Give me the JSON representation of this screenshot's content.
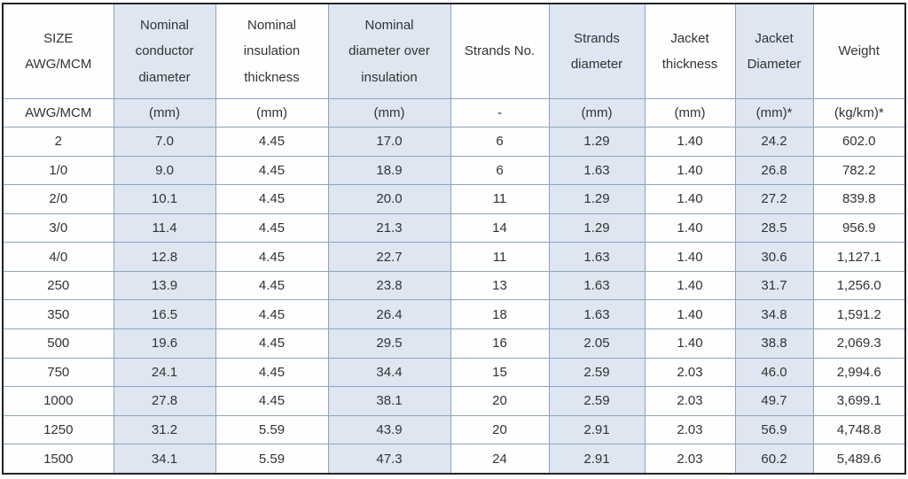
{
  "table": {
    "name": "cable-specification-table",
    "colors": {
      "outer_border": "#222426",
      "grid_line": "#8fa2c4",
      "shaded_column_fill": "#dde6f1",
      "text": "#333333"
    },
    "columns": [
      {
        "id": "size",
        "header": "SIZE\nAWG/MCM",
        "unit": "AWG/MCM",
        "shaded": false
      },
      {
        "id": "nominal-conductor-diameter",
        "header": "Nominal\nconductor\ndiameter",
        "unit": "(mm)",
        "shaded": true
      },
      {
        "id": "nominal-insulation-thickness",
        "header": "Nominal\ninsulation\nthickness",
        "unit": "(mm)",
        "shaded": false
      },
      {
        "id": "nominal-diameter-over-insulation",
        "header": "Nominal\ndiameter over\ninsulation",
        "unit": "(mm)",
        "shaded": true
      },
      {
        "id": "strands-no",
        "header": "Strands No.",
        "unit": "-",
        "shaded": false
      },
      {
        "id": "strands-diameter",
        "header": "Strands\ndiameter",
        "unit": "(mm)",
        "shaded": true
      },
      {
        "id": "jacket-thickness",
        "header": "Jacket\nthickness",
        "unit": "(mm)",
        "shaded": false
      },
      {
        "id": "jacket-diameter",
        "header": "Jacket\nDiameter",
        "unit": "(mm)*",
        "shaded": true
      },
      {
        "id": "weight",
        "header": "Weight",
        "unit": "(kg/km)*",
        "shaded": false
      }
    ],
    "rows": [
      [
        "2",
        "7.0",
        "4.45",
        "17.0",
        "6",
        "1.29",
        "1.40",
        "24.2",
        "602.0"
      ],
      [
        "1/0",
        "9.0",
        "4.45",
        "18.9",
        "6",
        "1.63",
        "1.40",
        "26.8",
        "782.2"
      ],
      [
        "2/0",
        "10.1",
        "4.45",
        "20.0",
        "11",
        "1.29",
        "1.40",
        "27.2",
        "839.8"
      ],
      [
        "3/0",
        "11.4",
        "4.45",
        "21.3",
        "14",
        "1.29",
        "1.40",
        "28.5",
        "956.9"
      ],
      [
        "4/0",
        "12.8",
        "4.45",
        "22.7",
        "11",
        "1.63",
        "1.40",
        "30.6",
        "1,127.1"
      ],
      [
        "250",
        "13.9",
        "4.45",
        "23.8",
        "13",
        "1.63",
        "1.40",
        "31.7",
        "1,256.0"
      ],
      [
        "350",
        "16.5",
        "4.45",
        "26.4",
        "18",
        "1.63",
        "1.40",
        "34.8",
        "1,591.2"
      ],
      [
        "500",
        "19.6",
        "4.45",
        "29.5",
        "16",
        "2.05",
        "1.40",
        "38.8",
        "2,069.3"
      ],
      [
        "750",
        "24.1",
        "4.45",
        "34.4",
        "15",
        "2.59",
        "2.03",
        "46.0",
        "2,994.6"
      ],
      [
        "1000",
        "27.8",
        "4.45",
        "38.1",
        "20",
        "2.59",
        "2.03",
        "49.7",
        "3,699.1"
      ],
      [
        "1250",
        "31.2",
        "5.59",
        "43.9",
        "20",
        "2.91",
        "2.03",
        "56.9",
        "4,748.8"
      ],
      [
        "1500",
        "34.1",
        "5.59",
        "47.3",
        "24",
        "2.91",
        "2.03",
        "60.2",
        "5,489.6"
      ]
    ]
  }
}
